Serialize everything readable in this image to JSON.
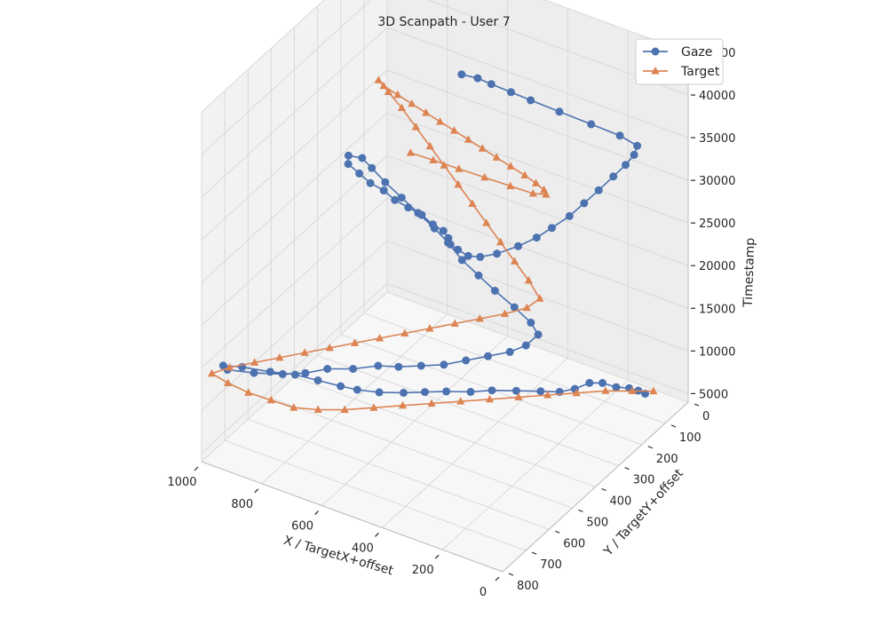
{
  "chart_data": {
    "type": "scatter",
    "subtype": "3d-line",
    "title": "3D Scanpath - User 7",
    "xlabel": "X / TargetX+offset",
    "ylabel": "Y / TargetY+offset",
    "zlabel": "Timestamp",
    "xlim": [
      0,
      1000
    ],
    "ylim": [
      0,
      800
    ],
    "zlim": [
      4000,
      45000
    ],
    "x_ticks": [
      0,
      200,
      400,
      600,
      800,
      1000
    ],
    "y_ticks": [
      0,
      100,
      200,
      300,
      400,
      500,
      600,
      700,
      800
    ],
    "z_ticks": [
      5000,
      10000,
      15000,
      20000,
      25000,
      30000,
      35000,
      40000,
      45000
    ],
    "grid": true,
    "legend_position": "top-right",
    "colors": {
      "gaze": "#4c72b0",
      "target": "#dd8452",
      "pane": "#f2f2f2",
      "grid": "#d9d9d9"
    },
    "series": [
      {
        "name": "Gaze",
        "marker": "circle",
        "points": [
          [
            120,
            30,
            4200
          ],
          [
            135,
            40,
            4600
          ],
          [
            150,
            60,
            5200
          ],
          [
            170,
            90,
            5800
          ],
          [
            200,
            110,
            6400
          ],
          [
            220,
            140,
            6900
          ],
          [
            230,
            190,
            7300
          ],
          [
            250,
            230,
            7700
          ],
          [
            290,
            260,
            8000
          ],
          [
            340,
            300,
            8400
          ],
          [
            390,
            340,
            8800
          ],
          [
            430,
            380,
            9100
          ],
          [
            480,
            420,
            9500
          ],
          [
            520,
            460,
            9900
          ],
          [
            560,
            500,
            10300
          ],
          [
            610,
            540,
            10700
          ],
          [
            660,
            570,
            11100
          ],
          [
            700,
            590,
            11500
          ],
          [
            760,
            610,
            11900
          ],
          [
            820,
            630,
            12300
          ],
          [
            880,
            660,
            12600
          ],
          [
            950,
            690,
            13000
          ],
          [
            990,
            720,
            13400
          ],
          [
            960,
            740,
            13800
          ],
          [
            880,
            730,
            14200
          ],
          [
            800,
            710,
            14600
          ],
          [
            740,
            690,
            15000
          ],
          [
            690,
            660,
            15400
          ],
          [
            620,
            640,
            15800
          ],
          [
            560,
            610,
            16200
          ],
          [
            500,
            600,
            16600
          ],
          [
            440,
            580,
            17000
          ],
          [
            380,
            560,
            17400
          ],
          [
            330,
            530,
            17800
          ],
          [
            280,
            500,
            18200
          ],
          [
            230,
            470,
            18600
          ],
          [
            200,
            440,
            19000
          ],
          [
            190,
            400,
            19400
          ],
          [
            230,
            380,
            19800
          ],
          [
            300,
            360,
            20200
          ],
          [
            380,
            340,
            20600
          ],
          [
            450,
            320,
            21000
          ],
          [
            520,
            300,
            21400
          ],
          [
            590,
            270,
            21800
          ],
          [
            650,
            250,
            22200
          ],
          [
            720,
            230,
            22600
          ],
          [
            790,
            210,
            23000
          ],
          [
            860,
            190,
            23400
          ],
          [
            920,
            170,
            23800
          ],
          [
            960,
            160,
            24200
          ],
          [
            990,
            180,
            24600
          ],
          [
            960,
            220,
            25000
          ],
          [
            900,
            250,
            25400
          ],
          [
            840,
            280,
            25800
          ],
          [
            780,
            300,
            26200
          ],
          [
            720,
            330,
            26600
          ],
          [
            660,
            350,
            27000
          ],
          [
            600,
            370,
            27400
          ],
          [
            540,
            400,
            27800
          ],
          [
            490,
            420,
            28200
          ],
          [
            450,
            450,
            28600
          ],
          [
            420,
            480,
            29000
          ],
          [
            380,
            500,
            29400
          ],
          [
            330,
            520,
            29800
          ],
          [
            290,
            520,
            30200
          ],
          [
            250,
            500,
            30600
          ],
          [
            210,
            460,
            31000
          ],
          [
            180,
            420,
            31400
          ],
          [
            160,
            380,
            31800
          ],
          [
            140,
            330,
            32200
          ],
          [
            130,
            280,
            32600
          ],
          [
            120,
            230,
            33000
          ],
          [
            110,
            180,
            33500
          ],
          [
            100,
            140,
            34000
          ],
          [
            95,
            110,
            34500
          ],
          [
            100,
            90,
            35000
          ],
          [
            150,
            100,
            35800
          ],
          [
            230,
            120,
            36600
          ],
          [
            320,
            140,
            37400
          ],
          [
            400,
            160,
            38200
          ],
          [
            450,
            180,
            39000
          ],
          [
            500,
            200,
            39800
          ],
          [
            530,
            220,
            40600
          ],
          [
            560,
            250,
            41400
          ]
        ]
      },
      {
        "name": "Target",
        "marker": "triangle",
        "points": [
          [
            100,
            20,
            4500
          ],
          [
            140,
            60,
            5000
          ],
          [
            190,
            110,
            5600
          ],
          [
            240,
            170,
            6200
          ],
          [
            290,
            230,
            6800
          ],
          [
            340,
            290,
            7400
          ],
          [
            390,
            350,
            8000
          ],
          [
            440,
            410,
            8600
          ],
          [
            490,
            470,
            9200
          ],
          [
            540,
            530,
            9800
          ],
          [
            590,
            590,
            10400
          ],
          [
            640,
            650,
            11000
          ],
          [
            690,
            700,
            11600
          ],
          [
            740,
            740,
            12200
          ],
          [
            800,
            760,
            12800
          ],
          [
            860,
            780,
            13400
          ],
          [
            920,
            790,
            14000
          ],
          [
            970,
            795,
            14600
          ],
          [
            930,
            770,
            15200
          ],
          [
            870,
            740,
            15800
          ],
          [
            810,
            710,
            16400
          ],
          [
            750,
            680,
            17000
          ],
          [
            690,
            650,
            17600
          ],
          [
            630,
            620,
            18200
          ],
          [
            570,
            590,
            18800
          ],
          [
            510,
            560,
            19400
          ],
          [
            450,
            530,
            20000
          ],
          [
            390,
            500,
            20600
          ],
          [
            330,
            470,
            21200
          ],
          [
            270,
            440,
            21800
          ],
          [
            220,
            410,
            22400
          ],
          [
            200,
            380,
            23000
          ],
          [
            260,
            350,
            23600
          ],
          [
            330,
            320,
            24200
          ],
          [
            400,
            290,
            24800
          ],
          [
            470,
            260,
            25400
          ],
          [
            540,
            230,
            26000
          ],
          [
            610,
            200,
            26600
          ],
          [
            680,
            170,
            27200
          ],
          [
            750,
            140,
            27800
          ],
          [
            820,
            110,
            28400
          ],
          [
            890,
            80,
            29000
          ],
          [
            950,
            60,
            29600
          ],
          [
            990,
            50,
            30200
          ],
          [
            950,
            80,
            30800
          ],
          [
            880,
            110,
            31400
          ],
          [
            810,
            140,
            32000
          ],
          [
            740,
            170,
            32600
          ],
          [
            670,
            200,
            33200
          ],
          [
            600,
            230,
            33800
          ],
          [
            530,
            260,
            34400
          ],
          [
            460,
            290,
            35000
          ],
          [
            390,
            320,
            35600
          ],
          [
            320,
            350,
            36200
          ],
          [
            250,
            380,
            36800
          ],
          [
            190,
            410,
            37400
          ],
          [
            140,
            440,
            38000
          ],
          [
            110,
            470,
            38600
          ],
          [
            130,
            500,
            39200
          ],
          [
            190,
            520,
            39800
          ],
          [
            260,
            540,
            40400
          ],
          [
            330,
            560,
            41000
          ],
          [
            400,
            580,
            41600
          ],
          [
            460,
            600,
            42200
          ]
        ]
      }
    ]
  }
}
